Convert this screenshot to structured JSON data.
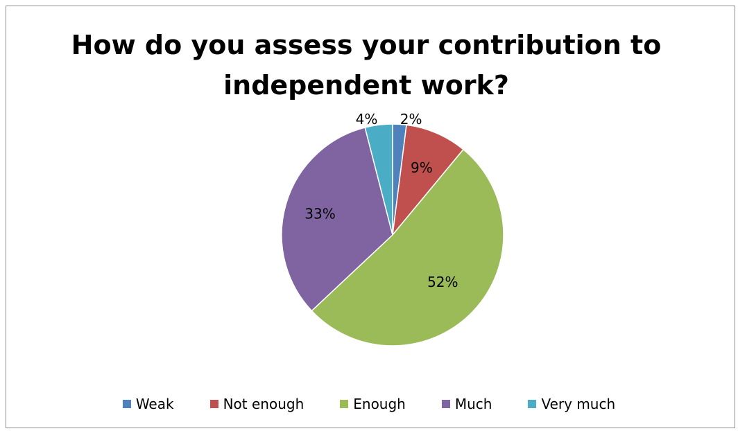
{
  "chart_data": {
    "type": "pie",
    "title_lines": [
      "How do you assess your contribution to",
      "independent work?"
    ],
    "categories": [
      "Weak",
      "Not enough",
      "Enough",
      "Much",
      "Very much"
    ],
    "values": [
      2,
      9,
      52,
      33,
      4
    ],
    "value_labels": [
      "2%",
      "9%",
      "52%",
      "33%",
      "4%"
    ],
    "colors": [
      "#4f81bd",
      "#c0504d",
      "#9bbb59",
      "#8064a2",
      "#4bacc6"
    ],
    "legend_position": "bottom",
    "start": "top",
    "direction": "clockwise"
  }
}
